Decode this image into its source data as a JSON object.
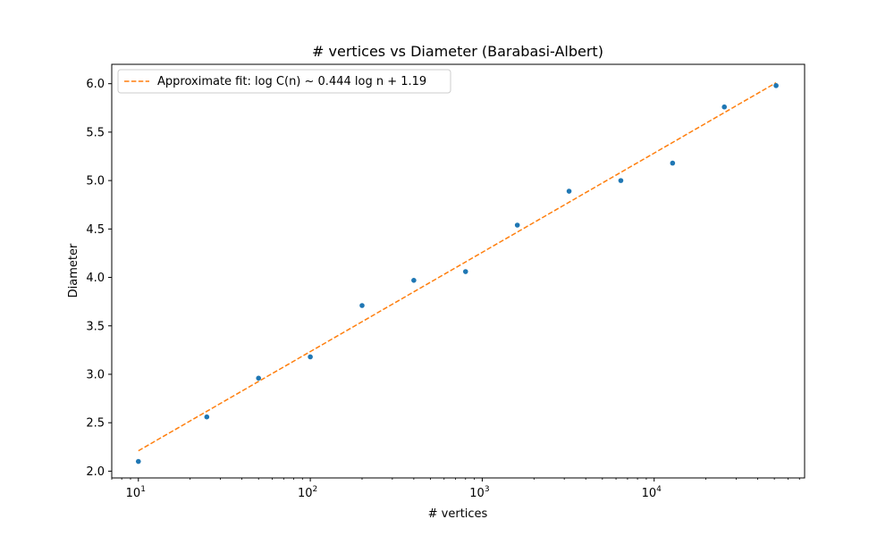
{
  "chart_data": {
    "type": "scatter",
    "title": "# vertices vs Diameter (Barabasi-Albert)",
    "xlabel": "# vertices",
    "ylabel": "Diameter",
    "xscale": "log",
    "xlim": [
      7,
      75000
    ],
    "ylim": [
      1.93,
      6.2
    ],
    "grid": false,
    "legend_placement": "top-left",
    "x_ticks": [
      {
        "value": 10,
        "exp": "1"
      },
      {
        "value": 100,
        "exp": "2"
      },
      {
        "value": 1000,
        "exp": "3"
      },
      {
        "value": 10000,
        "exp": "4"
      }
    ],
    "y_ticks": [
      {
        "value": 2.0,
        "label": "2.0"
      },
      {
        "value": 2.5,
        "label": "2.5"
      },
      {
        "value": 3.0,
        "label": "3.0"
      },
      {
        "value": 3.5,
        "label": "3.5"
      },
      {
        "value": 4.0,
        "label": "4.0"
      },
      {
        "value": 4.5,
        "label": "4.5"
      },
      {
        "value": 5.0,
        "label": "5.0"
      },
      {
        "value": 5.5,
        "label": "5.5"
      },
      {
        "value": 6.0,
        "label": "6.0"
      }
    ],
    "series": [
      {
        "kind": "scatter",
        "color": "#1f77b4",
        "x": [
          10,
          25,
          50,
          100,
          200,
          400,
          800,
          1600,
          3200,
          6400,
          12800,
          25600,
          51200
        ],
        "y": [
          2.1,
          2.56,
          2.96,
          3.18,
          3.71,
          3.97,
          4.06,
          4.54,
          4.89,
          5.0,
          5.18,
          5.76,
          5.98
        ]
      },
      {
        "kind": "line",
        "name": "Approximate fit: log C(n) ~ 0.444 log n + 1.19",
        "color": "#ff7f0e",
        "dash": "dashed",
        "x": [
          10,
          51200
        ],
        "y": [
          2.21,
          6.01
        ]
      }
    ]
  }
}
